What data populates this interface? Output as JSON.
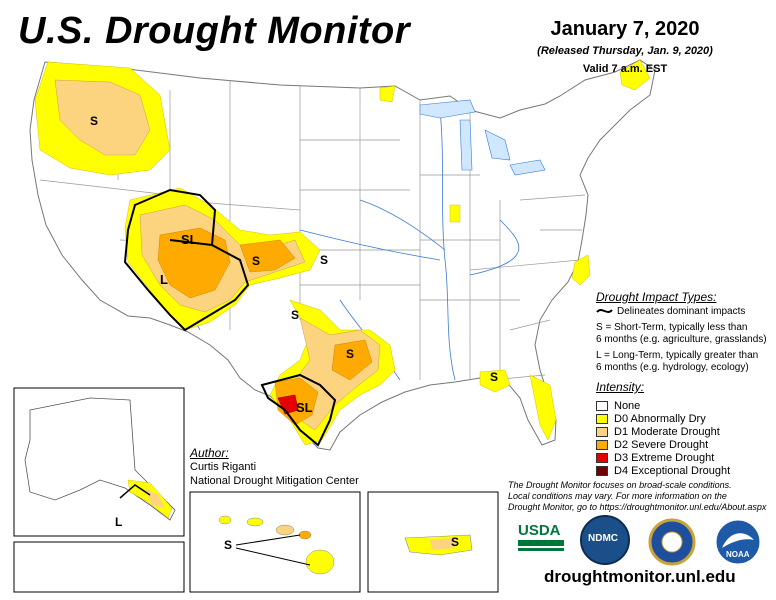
{
  "header": {
    "title": "U.S. Drought Monitor",
    "date": "January 7, 2020",
    "released": "(Released Thursday, Jan. 9, 2020)",
    "valid": "Valid 7 a.m. EST"
  },
  "legend": {
    "impact_heading": "Drought Impact Types:",
    "delineates": "Delineates dominant impacts",
    "short_term_1": "S = Short-Term, typically less than",
    "short_term_2": "6 months (e.g. agriculture, grasslands)",
    "long_term_1": "L = Long-Term, typically greater than",
    "long_term_2": "6 months (e.g. hydrology, ecology)",
    "intensity_heading": "Intensity:",
    "categories": [
      {
        "label": "None",
        "color": "#ffffff"
      },
      {
        "label": "D0 Abnormally Dry",
        "color": "#ffff00"
      },
      {
        "label": "D1 Moderate Drought",
        "color": "#fcd37f"
      },
      {
        "label": "D2 Severe Drought",
        "color": "#ffaa00"
      },
      {
        "label": "D3 Extreme Drought",
        "color": "#e60000"
      },
      {
        "label": "D4 Exceptional Drought",
        "color": "#730000"
      }
    ]
  },
  "author": {
    "heading": "Author:",
    "name": "Curtis Riganti",
    "org": "National Drought Mitigation Center"
  },
  "map_labels": {
    "pacific_nw": "S",
    "four_corners_sl": "SL",
    "four_corners_l": "L",
    "colorado_s": "S",
    "kansas_s": "S",
    "oklahoma_s": "S",
    "texas_s": "S",
    "texas_sl": "SL",
    "gulf_s": "S",
    "alaska_l": "L",
    "hawaii_s": "S",
    "puerto_rico_s": "S"
  },
  "disclaimer": {
    "line1": "The Drought Monitor focuses on broad-scale conditions.",
    "line2": "Local conditions may vary. For more information on the",
    "line3": "Drought Monitor, go to https://droughtmonitor.unl.edu/About.aspx"
  },
  "logos": {
    "usda": "USDA",
    "ndmc": "NDMC",
    "noaa": "NOAA"
  },
  "footer": {
    "url": "droughtmonitor.unl.edu"
  }
}
